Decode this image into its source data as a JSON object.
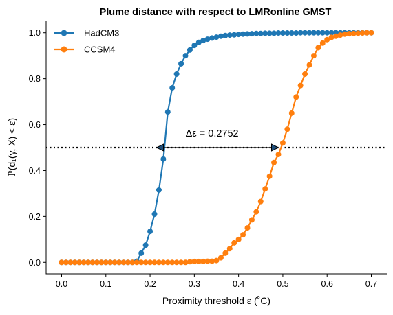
{
  "chart_data": {
    "type": "line",
    "title": "Plume distance with respect to LMRonline GMST",
    "xlabel": "Proximity threshold ε (˚C)",
    "ylabel": "ℙ(d₁(y, X) < ε)",
    "xlim": [
      -0.035,
      0.735
    ],
    "ylim": [
      -0.05,
      1.05
    ],
    "xticks": [
      "0.0",
      "0.1",
      "0.2",
      "0.3",
      "0.4",
      "0.5",
      "0.6",
      "0.7"
    ],
    "yticks": [
      "0.0",
      "0.2",
      "0.4",
      "0.6",
      "0.8",
      "1.0"
    ],
    "legend_position": "top-left",
    "grid": false,
    "threshold_line": {
      "y": 0.5,
      "style": "dotted",
      "color": "#000000"
    },
    "annotation": {
      "text": "Δε =  0.2752",
      "x_start": 0.2148,
      "x_end": 0.49,
      "y": 0.5
    },
    "series": [
      {
        "name": "HadCM3",
        "color": "#1f77b4",
        "x": [
          0.0,
          0.01,
          0.02,
          0.03,
          0.04,
          0.05,
          0.06,
          0.07,
          0.08,
          0.09,
          0.1,
          0.11,
          0.12,
          0.13,
          0.14,
          0.15,
          0.16,
          0.17,
          0.18,
          0.19,
          0.2,
          0.21,
          0.22,
          0.23,
          0.24,
          0.25,
          0.26,
          0.27,
          0.28,
          0.29,
          0.3,
          0.31,
          0.32,
          0.33,
          0.34,
          0.35,
          0.36,
          0.37,
          0.38,
          0.39,
          0.4,
          0.41,
          0.42,
          0.43,
          0.44,
          0.45,
          0.46,
          0.47,
          0.48,
          0.49,
          0.5,
          0.51,
          0.52,
          0.53,
          0.54,
          0.55,
          0.56,
          0.57,
          0.58,
          0.59,
          0.6,
          0.61,
          0.62,
          0.63,
          0.64,
          0.65,
          0.66,
          0.67,
          0.68,
          0.69,
          0.7
        ],
        "y": [
          0.0,
          0.0,
          0.0,
          0.0,
          0.0,
          0.0,
          0.0,
          0.0,
          0.0,
          0.0,
          0.0,
          0.0,
          0.0,
          0.0,
          0.0,
          0.0,
          0.0,
          0.005,
          0.04,
          0.075,
          0.135,
          0.21,
          0.315,
          0.45,
          0.655,
          0.76,
          0.82,
          0.865,
          0.9,
          0.925,
          0.945,
          0.958,
          0.966,
          0.972,
          0.977,
          0.981,
          0.985,
          0.988,
          0.99,
          0.991,
          0.993,
          0.994,
          0.995,
          0.996,
          0.997,
          0.997,
          0.998,
          0.998,
          0.998,
          0.999,
          0.999,
          0.999,
          0.999,
          0.999,
          1.0,
          1.0,
          1.0,
          1.0,
          1.0,
          1.0,
          1.0,
          1.0,
          1.0,
          1.0,
          1.0,
          1.0,
          1.0,
          1.0,
          1.0,
          1.0,
          1.0
        ]
      },
      {
        "name": "CCSM4",
        "color": "#ff7f0e",
        "x": [
          0.0,
          0.01,
          0.02,
          0.03,
          0.04,
          0.05,
          0.06,
          0.07,
          0.08,
          0.09,
          0.1,
          0.11,
          0.12,
          0.13,
          0.14,
          0.15,
          0.16,
          0.17,
          0.18,
          0.19,
          0.2,
          0.21,
          0.22,
          0.23,
          0.24,
          0.25,
          0.26,
          0.27,
          0.28,
          0.29,
          0.3,
          0.31,
          0.32,
          0.33,
          0.34,
          0.35,
          0.36,
          0.37,
          0.38,
          0.39,
          0.4,
          0.41,
          0.42,
          0.43,
          0.44,
          0.45,
          0.46,
          0.47,
          0.48,
          0.49,
          0.5,
          0.51,
          0.52,
          0.53,
          0.54,
          0.55,
          0.56,
          0.57,
          0.58,
          0.59,
          0.6,
          0.61,
          0.62,
          0.63,
          0.64,
          0.65,
          0.66,
          0.67,
          0.68,
          0.69,
          0.7
        ],
        "y": [
          0.0,
          0.0,
          0.0,
          0.0,
          0.0,
          0.0,
          0.0,
          0.0,
          0.0,
          0.0,
          0.0,
          0.0,
          0.0,
          0.0,
          0.0,
          0.0,
          0.0,
          0.0,
          0.0,
          0.0,
          0.0,
          0.0,
          0.0,
          0.0,
          0.0,
          0.0,
          0.0,
          0.0,
          0.0,
          0.003,
          0.004,
          0.004,
          0.004,
          0.005,
          0.005,
          0.008,
          0.02,
          0.04,
          0.06,
          0.085,
          0.1,
          0.12,
          0.15,
          0.185,
          0.22,
          0.265,
          0.32,
          0.375,
          0.435,
          0.47,
          0.52,
          0.58,
          0.65,
          0.72,
          0.77,
          0.82,
          0.86,
          0.9,
          0.935,
          0.955,
          0.97,
          0.98,
          0.985,
          0.99,
          0.994,
          0.996,
          0.997,
          0.998,
          0.999,
          1.0,
          1.0
        ]
      }
    ]
  }
}
